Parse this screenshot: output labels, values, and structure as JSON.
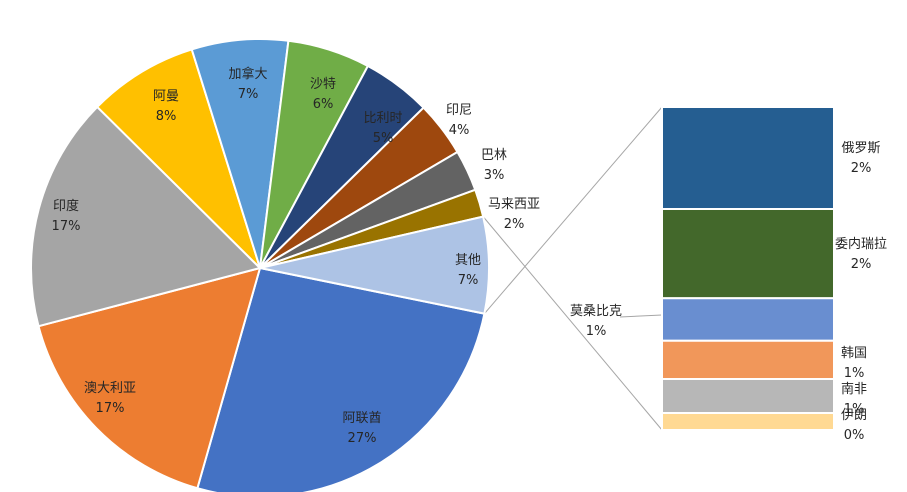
{
  "chart_data": {
    "type": "pie",
    "subtype": "bar-of-pie",
    "title": "",
    "slices": [
      {
        "name": "阿联酋",
        "value": 27,
        "label": "27%",
        "color": "#4472C4"
      },
      {
        "name": "澳大利亚",
        "value": 17,
        "label": "17%",
        "color": "#ED7D31"
      },
      {
        "name": "印度",
        "value": 17,
        "label": "17%",
        "color": "#A5A5A5"
      },
      {
        "name": "阿曼",
        "value": 8,
        "label": "8%",
        "color": "#FFC000"
      },
      {
        "name": "加拿大",
        "value": 7,
        "label": "7%",
        "color": "#5B9BD5"
      },
      {
        "name": "沙特",
        "value": 6,
        "label": "6%",
        "color": "#70AD47"
      },
      {
        "name": "比利时",
        "value": 5,
        "label": "5%",
        "color": "#264478"
      },
      {
        "name": "印尼",
        "value": 4,
        "label": "4%",
        "color": "#9E480E"
      },
      {
        "name": "巴林",
        "value": 3,
        "label": "3%",
        "color": "#636363"
      },
      {
        "name": "马来西亚",
        "value": 2,
        "label": "2%",
        "color": "#997300"
      },
      {
        "name": "其他",
        "value": 7,
        "label": "7%",
        "color": "#ADC3E5"
      }
    ],
    "other_breakdown": [
      {
        "name": "俄罗斯",
        "value": 2.4,
        "label": "2%",
        "color": "#255E91"
      },
      {
        "name": "委内瑞拉",
        "value": 2.1,
        "label": "2%",
        "color": "#43682B"
      },
      {
        "name": "莫桑比克",
        "value": 1.0,
        "label": "1%",
        "color": "#698ED0"
      },
      {
        "name": "韩国",
        "value": 0.9,
        "label": "1%",
        "color": "#F1975A"
      },
      {
        "name": "南非",
        "value": 0.8,
        "label": "1%",
        "color": "#B7B7B7"
      },
      {
        "name": "伊朗",
        "value": 0.4,
        "label": "0%",
        "color": "#FFD993"
      }
    ]
  }
}
